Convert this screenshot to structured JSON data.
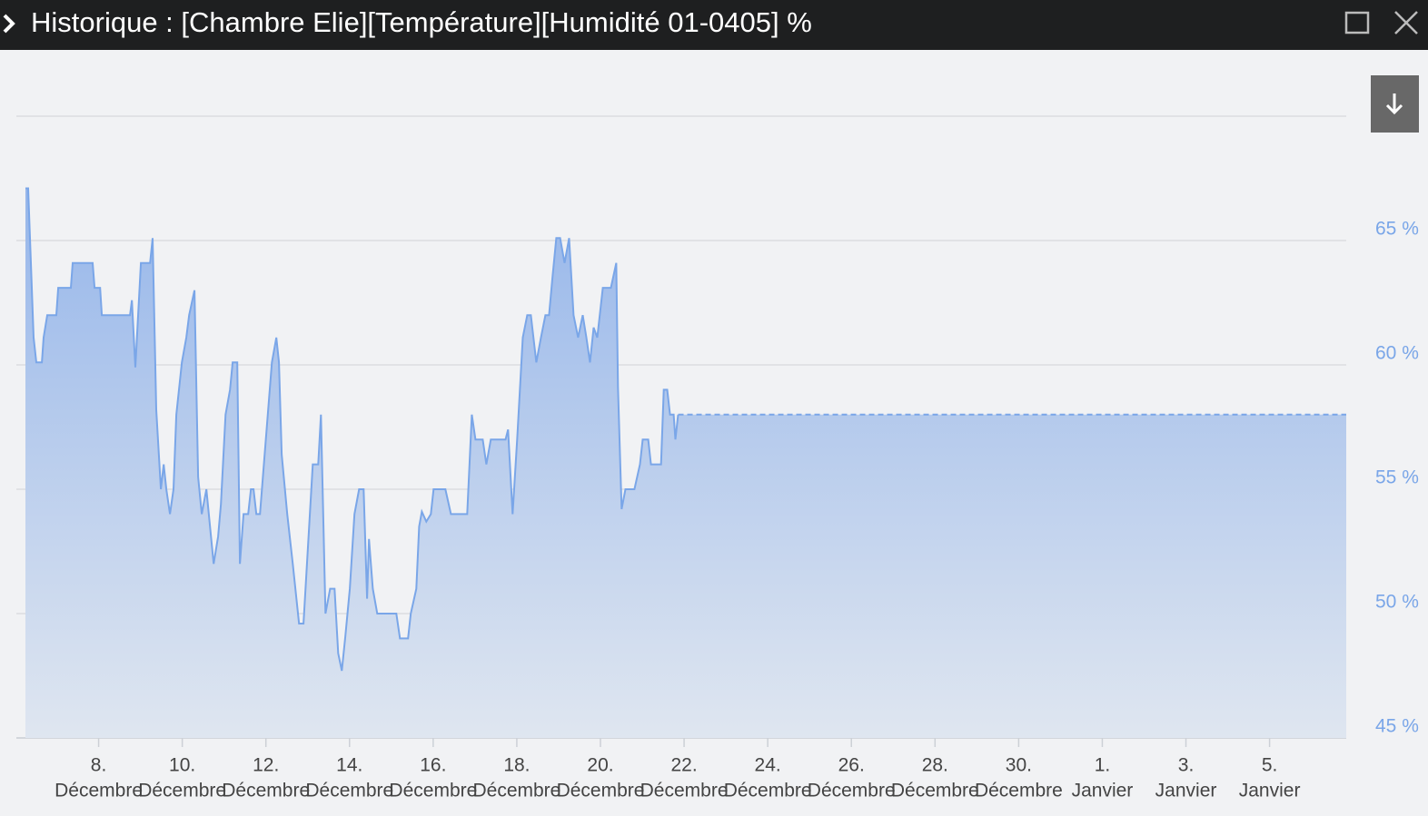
{
  "window": {
    "title": "Historique : [Chambre Elie][Température][Humidité 01-0405] %"
  },
  "chart_data": {
    "type": "area",
    "xlim": [
      "12-06T06:00",
      "01-06T20:00"
    ],
    "ylim": [
      45,
      70
    ],
    "yticks": [
      {
        "value": 45,
        "label": "45 %"
      },
      {
        "value": 50,
        "label": "50 %"
      },
      {
        "value": 55,
        "label": "55 %"
      },
      {
        "value": 60,
        "label": "60 %"
      },
      {
        "value": 65,
        "label": "65 %"
      }
    ],
    "xticks": [
      {
        "value": "12-08T00:00",
        "label": [
          "8.",
          "Décembre"
        ]
      },
      {
        "value": "12-10T00:00",
        "label": [
          "10.",
          "Décembre"
        ]
      },
      {
        "value": "12-12T00:00",
        "label": [
          "12.",
          "Décembre"
        ]
      },
      {
        "value": "12-14T00:00",
        "label": [
          "14.",
          "Décembre"
        ]
      },
      {
        "value": "12-16T00:00",
        "label": [
          "16.",
          "Décembre"
        ]
      },
      {
        "value": "12-18T00:00",
        "label": [
          "18.",
          "Décembre"
        ]
      },
      {
        "value": "12-20T00:00",
        "label": [
          "20.",
          "Décembre"
        ]
      },
      {
        "value": "12-22T00:00",
        "label": [
          "22.",
          "Décembre"
        ]
      },
      {
        "value": "12-24T00:00",
        "label": [
          "24.",
          "Décembre"
        ]
      },
      {
        "value": "12-26T00:00",
        "label": [
          "26.",
          "Décembre"
        ]
      },
      {
        "value": "12-28T00:00",
        "label": [
          "28.",
          "Décembre"
        ]
      },
      {
        "value": "12-30T00:00",
        "label": [
          "30.",
          "Décembre"
        ]
      },
      {
        "value": "01-01T00:00",
        "label": [
          "1.",
          "Janvier"
        ]
      },
      {
        "value": "01-03T00:00",
        "label": [
          "3.",
          "Janvier"
        ]
      },
      {
        "value": "01-05T00:00",
        "label": [
          "5.",
          "Janvier"
        ]
      }
    ],
    "grid": true,
    "extend_last": true,
    "series": [
      {
        "color": "#7aa6e8",
        "x": [
          "12-06T06:00",
          "12-06T07:35",
          "12-06T10:40",
          "12-06T12:15",
          "12-06T15:25",
          "12-06T16:25",
          "12-06T18:30",
          "12-06T23:45",
          "12-07T00:50",
          "12-07T08:05",
          "12-07T09:05",
          "12-07T20:35",
          "12-07T21:40",
          "12-08T00:50",
          "12-08T01:50",
          "12-08T18:00",
          "12-08T19:05",
          "12-08T21:05",
          "12-09T00:15",
          "12-09T05:30",
          "12-09T07:00",
          "12-09T09:05",
          "12-09T11:45",
          "12-09T13:20",
          "12-09T14:50",
          "12-09T16:55",
          "12-09T19:00",
          "12-09T20:35",
          "12-09T23:45",
          "12-10T02:20",
          "12-10T03:55",
          "12-10T07:00",
          "12-10T09:05",
          "12-10T11:10",
          "12-10T13:50",
          "12-10T18:00",
          "12-10T20:35",
          "12-10T22:10",
          "12-11T00:50",
          "12-11T03:25",
          "12-11T04:55",
          "12-11T07:35",
          "12-11T09:05",
          "12-11T11:10",
          "12-11T13:50",
          "12-11T15:25",
          "12-11T16:55",
          "12-11T18:30",
          "12-11T20:35",
          "12-11T22:10",
          "12-12T03:25",
          "12-12T06:00",
          "12-12T07:30",
          "12-12T09:05",
          "12-12T12:15",
          "12-12T15:25",
          "12-12T19:00",
          "12-12T21:35",
          "12-13T02:55",
          "12-13T06:00",
          "12-13T07:35",
          "12-13T10:10",
          "12-13T12:50",
          "12-13T15:25",
          "12-13T17:30",
          "12-13T19:35",
          "12-13T21:35",
          "12-14T00:10",
          "12-14T02:50",
          "12-14T05:30",
          "12-14T08:05",
          "12-14T10:05",
          "12-14T11:10",
          "12-14T13:20",
          "12-14T15:55",
          "12-15T02:50",
          "12-15T04:55",
          "12-15T09:35",
          "12-15T11:10",
          "12-15T14:20",
          "12-15T15:55",
          "12-15T17:30",
          "12-15T20:05",
          "12-15T22:40",
          "12-16T00:15",
          "12-16T07:00",
          "12-16T10:10",
          "12-16T19:30",
          "12-16T22:10",
          "12-17T00:15",
          "12-17T04:25",
          "12-17T06:30",
          "12-17T09:05",
          "12-17T17:30",
          "12-17T19:00",
          "12-17T21:35",
          "12-18T00:10",
          "12-18T03:25",
          "12-18T06:00",
          "12-18T08:05",
          "12-18T11:10",
          "12-18T13:50",
          "12-18T16:25",
          "12-18T18:30",
          "12-18T20:35",
          "12-18T22:40",
          "12-19T00:50",
          "12-19T03:25",
          "12-19T06:00",
          "12-19T08:35",
          "12-19T11:10",
          "12-19T13:50",
          "12-19T15:55",
          "12-19T18:00",
          "12-19T20:05",
          "12-19T22:10",
          "12-20T01:20",
          "12-20T06:00",
          "12-20T09:05",
          "12-20T10:05",
          "12-20T12:10",
          "12-20T14:20",
          "12-20T19:30",
          "12-20T22:40",
          "12-21T00:15",
          "12-21T03:25",
          "12-21T05:00",
          "12-21T10:45",
          "12-21T12:20",
          "12-21T14:20",
          "12-21T15:55",
          "12-21T18:00",
          "12-21T19:00",
          "12-21T20:35"
        ],
        "values": [
          67.1,
          67.1,
          61.1,
          60.1,
          60.1,
          61.1,
          62.0,
          62.0,
          63.1,
          63.1,
          64.1,
          64.1,
          63.1,
          63.1,
          62.0,
          62.0,
          62.6,
          59.9,
          64.1,
          64.1,
          65.1,
          58.2,
          55.0,
          56.0,
          55.0,
          54.0,
          55.0,
          58.0,
          60.1,
          61.1,
          62.0,
          63.0,
          55.5,
          54.0,
          55.0,
          52.0,
          53.1,
          54.4,
          58.0,
          59.0,
          60.1,
          60.1,
          52.0,
          54.0,
          54.0,
          55.0,
          55.0,
          54.0,
          54.0,
          55.4,
          60.1,
          61.1,
          60.1,
          56.4,
          54.0,
          52.0,
          49.6,
          49.6,
          56.0,
          56.0,
          58.0,
          50.0,
          51.0,
          51.0,
          48.4,
          47.7,
          49.1,
          51.0,
          54.0,
          55.0,
          55.0,
          50.6,
          53.0,
          51.0,
          50.0,
          50.0,
          49.0,
          49.0,
          50.0,
          51.0,
          53.5,
          54.1,
          53.7,
          54.0,
          55.0,
          55.0,
          54.0,
          54.0,
          58.0,
          57.0,
          57.0,
          56.0,
          57.0,
          57.0,
          57.4,
          54.0,
          57.0,
          61.1,
          62.0,
          62.0,
          60.1,
          61.1,
          62.0,
          62.0,
          63.6,
          65.1,
          65.1,
          64.1,
          65.1,
          62.0,
          61.1,
          62.0,
          61.1,
          60.1,
          61.5,
          61.1,
          63.1,
          63.1,
          64.1,
          59.1,
          54.2,
          55.0,
          55.0,
          56.0,
          57.0,
          57.0,
          56.0,
          56.0,
          59.0,
          59.0,
          58.0,
          58.0,
          57.0,
          58.0
        ]
      }
    ]
  }
}
